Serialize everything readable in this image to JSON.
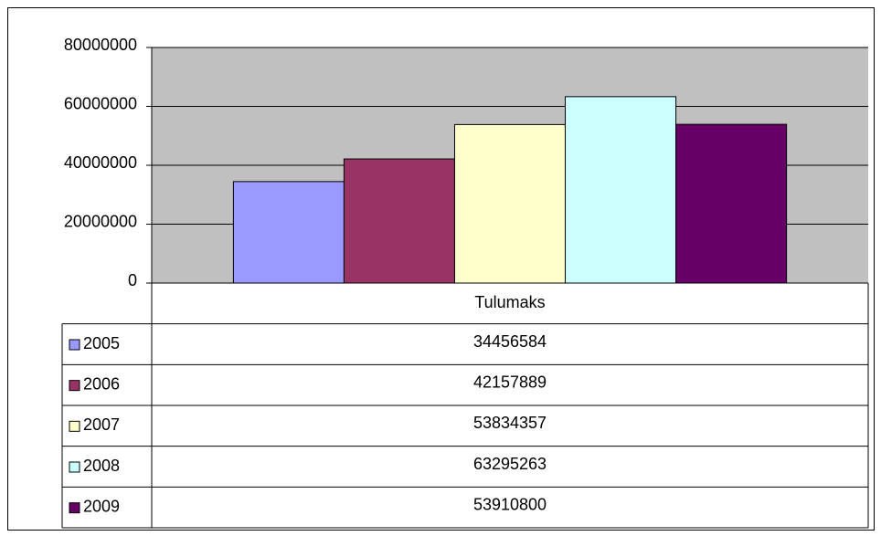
{
  "chart_data": {
    "type": "bar",
    "categories": [
      "Tulumaks"
    ],
    "series": [
      {
        "name": "2005",
        "color": "#9999ff",
        "values": [
          34456584
        ]
      },
      {
        "name": "2006",
        "color": "#993366",
        "values": [
          42157889
        ]
      },
      {
        "name": "2007",
        "color": "#ffffcc",
        "values": [
          53834357
        ]
      },
      {
        "name": "2008",
        "color": "#ccffff",
        "values": [
          63295263
        ]
      },
      {
        "name": "2009",
        "color": "#660066",
        "values": [
          53910800
        ]
      }
    ],
    "ylim": [
      0,
      80000000
    ],
    "yticks": [
      0,
      20000000,
      40000000,
      60000000,
      80000000
    ],
    "grid": true,
    "plot_background": "#c0c0c0"
  }
}
